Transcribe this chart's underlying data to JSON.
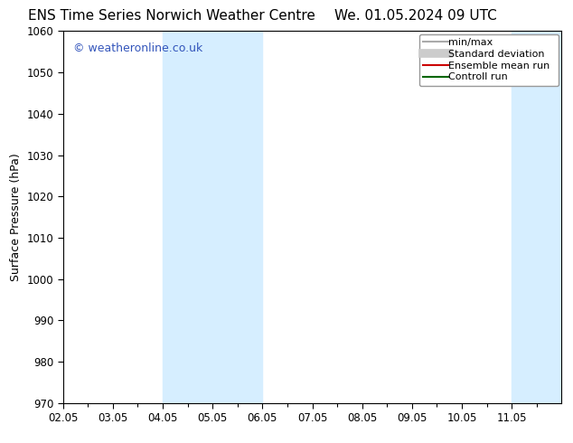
{
  "title_left": "ENS Time Series Norwich Weather Centre",
  "title_right": "We. 01.05.2024 09 UTC",
  "ylabel": "Surface Pressure (hPa)",
  "ylim": [
    970,
    1060
  ],
  "yticks": [
    970,
    980,
    990,
    1000,
    1010,
    1020,
    1030,
    1040,
    1050,
    1060
  ],
  "xlim": [
    0,
    10
  ],
  "xtick_labels": [
    "02.05",
    "03.05",
    "04.05",
    "05.05",
    "06.05",
    "07.05",
    "08.05",
    "09.05",
    "10.05",
    "11.05"
  ],
  "xtick_positions": [
    0,
    1,
    2,
    3,
    4,
    5,
    6,
    7,
    8,
    9
  ],
  "shaded_bands": [
    {
      "xmin": 2.0,
      "xmax": 2.5,
      "color": "#ddeeff"
    },
    {
      "xmin": 2.5,
      "xmax": 4.0,
      "color": "#cce8ff"
    },
    {
      "xmin": 9.0,
      "xmax": 9.5,
      "color": "#ddeeff"
    },
    {
      "xmin": 9.5,
      "xmax": 10.5,
      "color": "#cce8ff"
    }
  ],
  "watermark": "© weatheronline.co.uk",
  "watermark_color": "#3355bb",
  "legend_items": [
    {
      "label": "min/max",
      "color": "#aaaaaa",
      "lw": 1.5
    },
    {
      "label": "Standard deviation",
      "color": "#cccccc",
      "lw": 7
    },
    {
      "label": "Ensemble mean run",
      "color": "#cc0000",
      "lw": 1.5
    },
    {
      "label": "Controll run",
      "color": "#006600",
      "lw": 1.5
    }
  ],
  "bg_color": "#ffffff",
  "spine_color": "#000000",
  "title_fontsize": 11,
  "axis_label_fontsize": 9,
  "tick_fontsize": 8.5,
  "legend_fontsize": 8
}
